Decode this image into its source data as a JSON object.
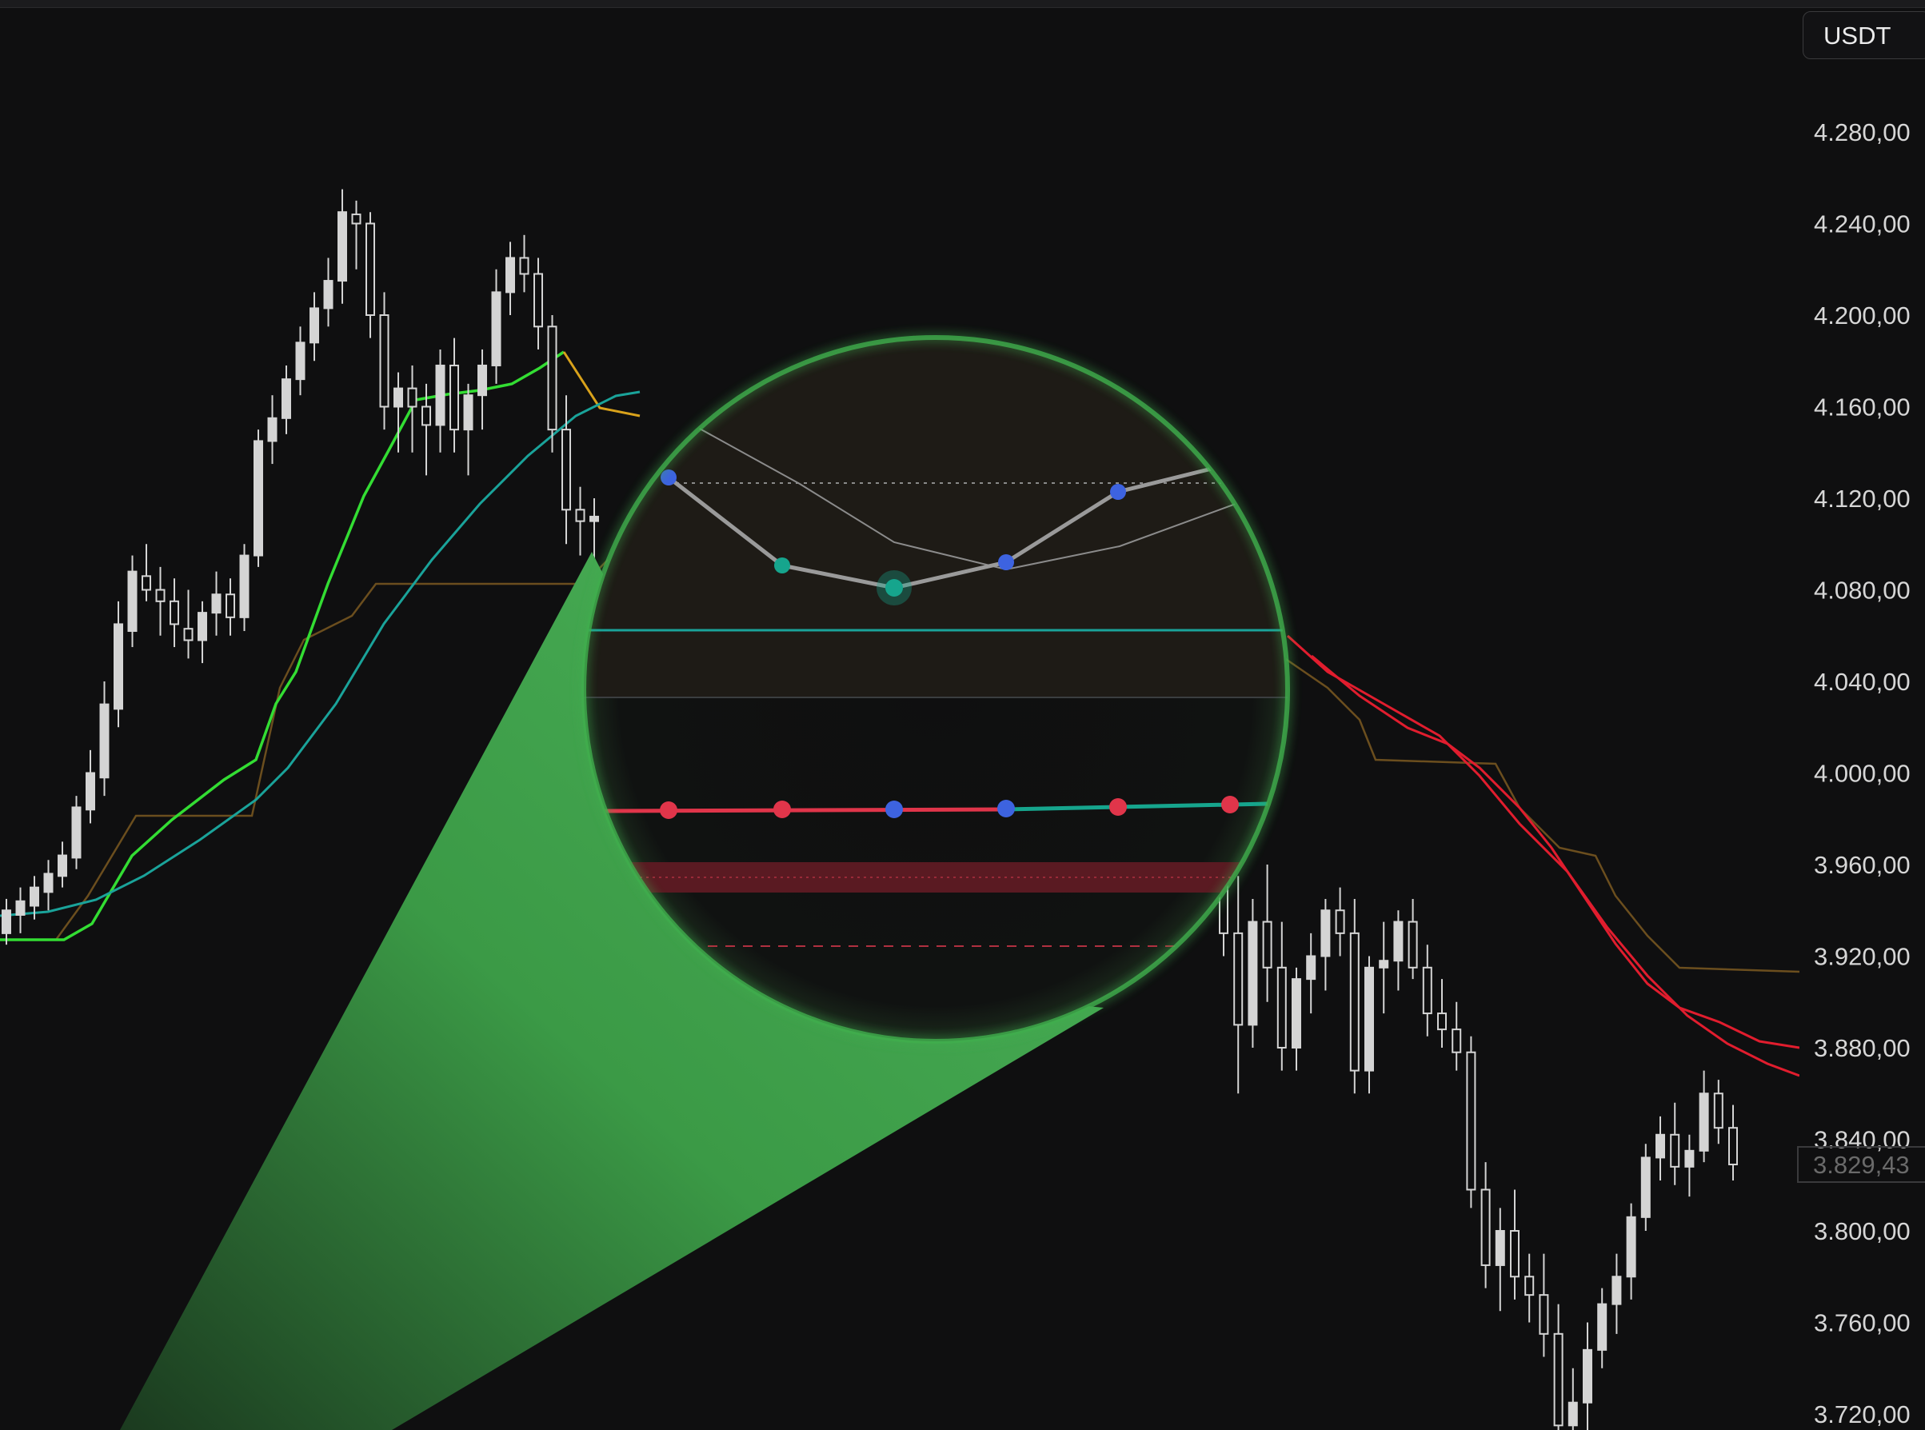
{
  "window": {
    "title": ""
  },
  "currency_button": {
    "label": "USDT"
  },
  "price_axis": {
    "ticks": [
      "4.280,00",
      "4.240,00",
      "4.200,00",
      "4.160,00",
      "4.120,00",
      "4.080,00",
      "4.040,00",
      "4.000,00",
      "3.960,00",
      "3.920,00",
      "3.880,00",
      "3.840,00",
      "3.800,00",
      "3.760,00",
      "3.720,00"
    ],
    "last_price": "3.829,43"
  },
  "colors": {
    "background": "#0f0f10",
    "candle": "#d4d4d4",
    "ema_fast": "#33dd33",
    "ema_slow": "#1aa39a",
    "ema_down": "#e11d2e",
    "step_line": "#6b4e1e",
    "magnifier_glow": "#3fae4d",
    "dot_blue": "#3d63e0",
    "dot_teal": "#16a58d",
    "dot_red": "#e0354a"
  },
  "icons": {
    "magnifier": "magnifier-lens",
    "callout": "magnifier-cone"
  },
  "chart_data": {
    "type": "candlestick",
    "title": "",
    "xlabel": "",
    "ylabel": "",
    "y_range": [
      3700,
      4310
    ],
    "y_ticks": [
      4280,
      4240,
      4200,
      4160,
      4120,
      4080,
      4040,
      4000,
      3960,
      3920,
      3880,
      3840,
      3800,
      3760,
      3720
    ],
    "last_price": 3829.43,
    "series": [
      {
        "kind": "candles",
        "ohlc_left": [
          [
            3930,
            3945,
            3925,
            3940
          ],
          [
            3938,
            3950,
            3930,
            3944
          ],
          [
            3942,
            3955,
            3936,
            3950
          ],
          [
            3948,
            3962,
            3940,
            3956
          ],
          [
            3955,
            3970,
            3950,
            3964
          ],
          [
            3963,
            3990,
            3958,
            3985
          ],
          [
            3984,
            4010,
            3978,
            4000
          ],
          [
            3998,
            4040,
            3990,
            4030
          ],
          [
            4028,
            4075,
            4020,
            4065
          ],
          [
            4062,
            4095,
            4055,
            4088
          ],
          [
            4086,
            4100,
            4075,
            4080
          ],
          [
            4080,
            4090,
            4060,
            4075
          ],
          [
            4075,
            4085,
            4055,
            4065
          ],
          [
            4063,
            4080,
            4050,
            4058
          ],
          [
            4058,
            4075,
            4048,
            4070
          ],
          [
            4070,
            4088,
            4060,
            4078
          ],
          [
            4078,
            4085,
            4060,
            4068
          ],
          [
            4068,
            4100,
            4062,
            4095
          ],
          [
            4095,
            4150,
            4090,
            4145
          ],
          [
            4145,
            4165,
            4135,
            4155
          ],
          [
            4155,
            4178,
            4148,
            4172
          ],
          [
            4172,
            4195,
            4165,
            4188
          ],
          [
            4188,
            4210,
            4180,
            4203
          ],
          [
            4203,
            4225,
            4195,
            4215
          ],
          [
            4215,
            4255,
            4205,
            4245
          ],
          [
            4244,
            4250,
            4220,
            4240
          ],
          [
            4240,
            4245,
            4190,
            4200
          ],
          [
            4200,
            4210,
            4150,
            4160
          ],
          [
            4160,
            4175,
            4140,
            4168
          ],
          [
            4168,
            4178,
            4140,
            4160
          ],
          [
            4160,
            4170,
            4130,
            4152
          ],
          [
            4152,
            4185,
            4140,
            4178
          ],
          [
            4178,
            4190,
            4140,
            4150
          ],
          [
            4150,
            4170,
            4130,
            4165
          ],
          [
            4165,
            4185,
            4150,
            4178
          ],
          [
            4178,
            4220,
            4170,
            4210
          ],
          [
            4210,
            4232,
            4200,
            4225
          ],
          [
            4225,
            4235,
            4210,
            4218
          ],
          [
            4218,
            4225,
            4185,
            4195
          ],
          [
            4195,
            4200,
            4140,
            4150
          ],
          [
            4150,
            4165,
            4100,
            4115
          ],
          [
            4115,
            4125,
            4095,
            4110
          ],
          [
            4110,
            4120,
            4090,
            4112
          ]
        ]
      },
      {
        "kind": "candles",
        "ohlc_right": [
          [
            3960,
            3970,
            3920,
            3930
          ],
          [
            3930,
            3955,
            3860,
            3890
          ],
          [
            3890,
            3945,
            3880,
            3935
          ],
          [
            3935,
            3960,
            3900,
            3915
          ],
          [
            3915,
            3935,
            3870,
            3880
          ],
          [
            3880,
            3915,
            3870,
            3910
          ],
          [
            3910,
            3930,
            3895,
            3920
          ],
          [
            3920,
            3945,
            3905,
            3940
          ],
          [
            3940,
            3950,
            3920,
            3930
          ],
          [
            3930,
            3945,
            3860,
            3870
          ],
          [
            3870,
            3920,
            3860,
            3915
          ],
          [
            3915,
            3935,
            3895,
            3918
          ],
          [
            3918,
            3940,
            3905,
            3935
          ],
          [
            3935,
            3945,
            3910,
            3915
          ],
          [
            3915,
            3925,
            3885,
            3895
          ],
          [
            3895,
            3910,
            3880,
            3888
          ],
          [
            3888,
            3900,
            3870,
            3878
          ],
          [
            3878,
            3885,
            3810,
            3818
          ],
          [
            3818,
            3830,
            3775,
            3785
          ],
          [
            3785,
            3810,
            3765,
            3800
          ],
          [
            3800,
            3818,
            3770,
            3780
          ],
          [
            3780,
            3790,
            3760,
            3772
          ],
          [
            3772,
            3790,
            3745,
            3755
          ],
          [
            3755,
            3768,
            3705,
            3715
          ],
          [
            3715,
            3740,
            3690,
            3725
          ],
          [
            3725,
            3760,
            3710,
            3748
          ],
          [
            3748,
            3775,
            3740,
            3768
          ],
          [
            3768,
            3790,
            3755,
            3780
          ],
          [
            3780,
            3812,
            3770,
            3806
          ],
          [
            3806,
            3838,
            3800,
            3832
          ],
          [
            3832,
            3850,
            3822,
            3842
          ],
          [
            3842,
            3856,
            3820,
            3828
          ],
          [
            3828,
            3842,
            3815,
            3835
          ],
          [
            3835,
            3870,
            3830,
            3860
          ],
          [
            3860,
            3866,
            3838,
            3845
          ],
          [
            3845,
            3855,
            3822,
            3829
          ]
        ]
      },
      {
        "kind": "line",
        "name": "",
        "color": "#33dd33"
      },
      {
        "kind": "line",
        "name": "",
        "color": "#1aa39a"
      },
      {
        "kind": "line",
        "name": "",
        "color": "#e11d2e"
      },
      {
        "kind": "line",
        "name": "",
        "color": "#6b4e1e"
      }
    ],
    "grid": false,
    "legend": "none"
  }
}
